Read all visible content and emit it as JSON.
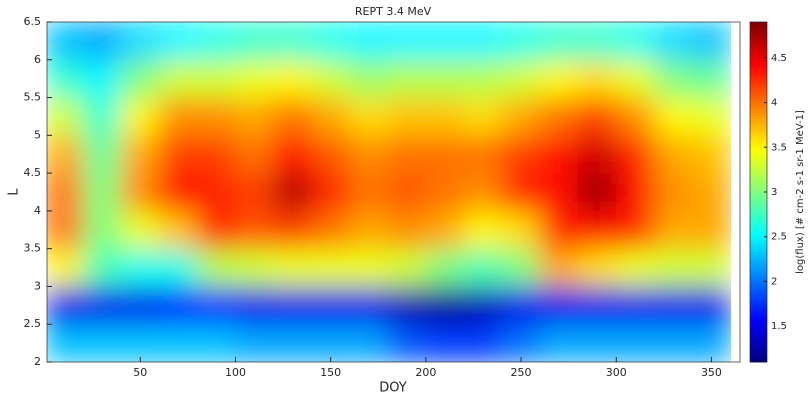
{
  "chart_data": {
    "type": "heatmap",
    "title": "REPT 3.4 MeV",
    "x_label": "DOY",
    "y_label": "L",
    "colorbar_label": "log(flux) [# cm-2 s-1 sr-1 MeV-1]",
    "colormap": "jet",
    "x": [
      10,
      30,
      50,
      70,
      90,
      110,
      130,
      150,
      170,
      190,
      210,
      230,
      250,
      270,
      290,
      310,
      330,
      350
    ],
    "y": [
      2.25,
      2.75,
      3.25,
      3.75,
      4.25,
      4.75,
      5.25,
      5.75,
      6.25
    ],
    "z": [
      [
        2.3,
        2.3,
        2.3,
        2.3,
        2.3,
        2.2,
        2.2,
        2.2,
        2.2,
        1.9,
        1.8,
        1.8,
        2.0,
        2.2,
        2.2,
        2.2,
        2.2,
        2.2
      ],
      [
        1.5,
        1.5,
        1.5,
        1.6,
        1.7,
        1.5,
        1.5,
        1.5,
        1.5,
        1.3,
        1.2,
        1.3,
        1.5,
        1.5,
        1.5,
        1.5,
        1.5,
        1.5
      ],
      [
        3.5,
        2.8,
        2.6,
        2.6,
        3.2,
        3.3,
        3.4,
        3.4,
        3.4,
        3.3,
        3.0,
        2.8,
        3.0,
        3.8,
        3.6,
        3.4,
        3.3,
        3.3
      ],
      [
        4.0,
        3.0,
        3.4,
        3.7,
        4.3,
        4.1,
        4.2,
        4.0,
        3.8,
        3.9,
        3.8,
        3.5,
        3.6,
        4.3,
        4.4,
        4.3,
        3.8,
        3.8
      ],
      [
        4.0,
        3.0,
        3.9,
        4.4,
        4.3,
        4.2,
        4.7,
        4.3,
        4.0,
        4.1,
        4.0,
        3.9,
        4.3,
        4.4,
        4.8,
        4.4,
        3.9,
        3.8
      ],
      [
        3.8,
        2.9,
        3.8,
        4.2,
        4.2,
        4.0,
        4.4,
        4.1,
        3.9,
        4.0,
        4.0,
        4.0,
        4.2,
        4.4,
        4.6,
        4.3,
        3.8,
        3.7
      ],
      [
        3.3,
        2.7,
        3.5,
        3.9,
        3.9,
        3.8,
        4.0,
        3.8,
        3.6,
        3.7,
        3.7,
        3.6,
        3.8,
        4.0,
        4.2,
        3.9,
        3.5,
        3.4
      ],
      [
        2.7,
        2.5,
        3.0,
        3.3,
        3.3,
        3.4,
        3.5,
        3.3,
        3.1,
        3.2,
        3.2,
        3.2,
        3.3,
        3.5,
        3.6,
        3.4,
        3.0,
        2.9
      ],
      [
        2.3,
        2.2,
        2.4,
        2.5,
        2.6,
        2.7,
        2.7,
        2.6,
        2.5,
        2.5,
        2.5,
        2.5,
        2.6,
        2.7,
        2.7,
        2.6,
        2.4,
        2.3
      ]
    ],
    "xlim": [
      1,
      365
    ],
    "xticks": [
      50,
      100,
      150,
      200,
      250,
      300,
      350
    ],
    "ylim": [
      2,
      6.5
    ],
    "yticks": [
      2,
      2.5,
      3,
      3.5,
      4,
      4.5,
      5,
      5.5,
      6,
      6.5
    ],
    "clim": [
      1.1,
      4.9
    ],
    "cticks": [
      1.5,
      2,
      2.5,
      3,
      3.5,
      4,
      4.5
    ]
  }
}
